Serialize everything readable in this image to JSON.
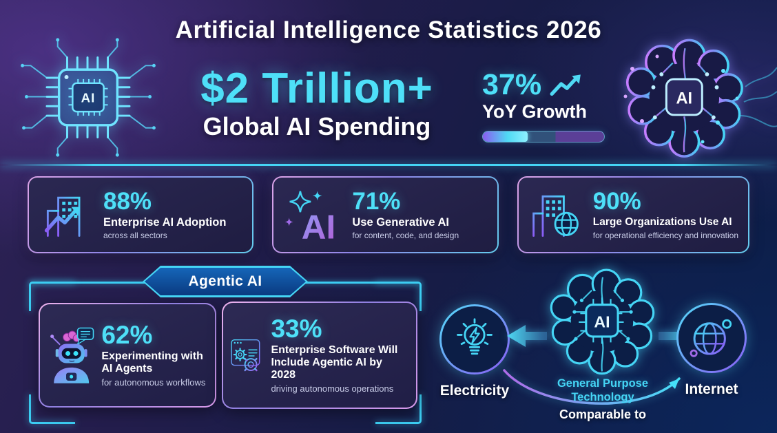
{
  "title": "Artificial Intelligence Statistics 2026",
  "hero": {
    "amount": "$2 Trillion+",
    "label": "Global AI Spending",
    "growth_percent": "37%",
    "growth_label": "YoY Growth",
    "growth_value": 37
  },
  "stats": [
    {
      "icon": "buildings-growth-icon",
      "percent": "88%",
      "label": "Enterprise AI Adoption",
      "sub": "across all sectors"
    },
    {
      "icon": "sparkles-ai-icon",
      "percent": "71%",
      "label": "Use Generative AI",
      "sub": "for content, code, and design"
    },
    {
      "icon": "buildings-globe-icon",
      "percent": "90%",
      "label": "Large Organizations Use AI",
      "sub": "for operational efficiency and innovation"
    }
  ],
  "agentic": {
    "badge": "Agentic AI",
    "cards": [
      {
        "icon": "robot-icon",
        "percent": "62%",
        "label": "Experimenting with AI Agents",
        "sub": "for autonomous workflows"
      },
      {
        "icon": "software-gears-icon",
        "percent": "33%",
        "label": "Enterprise Software Will Include Agentic AI by 2028",
        "sub": "driving autonomous operations"
      }
    ]
  },
  "comparison": {
    "caption": "Comparable to",
    "center_label_line1": "General Purpose",
    "center_label_line2": "Technology",
    "left_label": "Electricity",
    "right_label": "Internet",
    "chip_label": "AI"
  },
  "decor": {
    "chip_label": "AI",
    "brain_chip_label": "AI"
  },
  "colors": {
    "accent_cyan": "#45d5f5",
    "accent_purple": "#8b5cf6",
    "card_border_pink": "#e3a9ea",
    "background_navy": "#0b1c42",
    "background_purple": "#2e2356"
  },
  "chart_data": {
    "type": "table",
    "title": "Artificial Intelligence Statistics 2026",
    "kpis": [
      {
        "metric": "Global AI Spending",
        "value": "$2 Trillion+"
      },
      {
        "metric": "YoY Growth",
        "value": 37,
        "unit": "%"
      },
      {
        "metric": "Enterprise AI Adoption",
        "value": 88,
        "unit": "%",
        "note": "across all sectors"
      },
      {
        "metric": "Use Generative AI",
        "value": 71,
        "unit": "%",
        "note": "for content, code, and design"
      },
      {
        "metric": "Large Organizations Use AI",
        "value": 90,
        "unit": "%",
        "note": "for operational efficiency and innovation"
      },
      {
        "metric": "Experimenting with AI Agents",
        "value": 62,
        "unit": "%",
        "note": "for autonomous workflows",
        "group": "Agentic AI"
      },
      {
        "metric": "Enterprise Software Will Include Agentic AI by 2028",
        "value": 33,
        "unit": "%",
        "note": "driving autonomous operations",
        "group": "Agentic AI"
      },
      {
        "metric": "AI as General Purpose Technology",
        "value": "Comparable to Electricity and the Internet"
      }
    ]
  }
}
